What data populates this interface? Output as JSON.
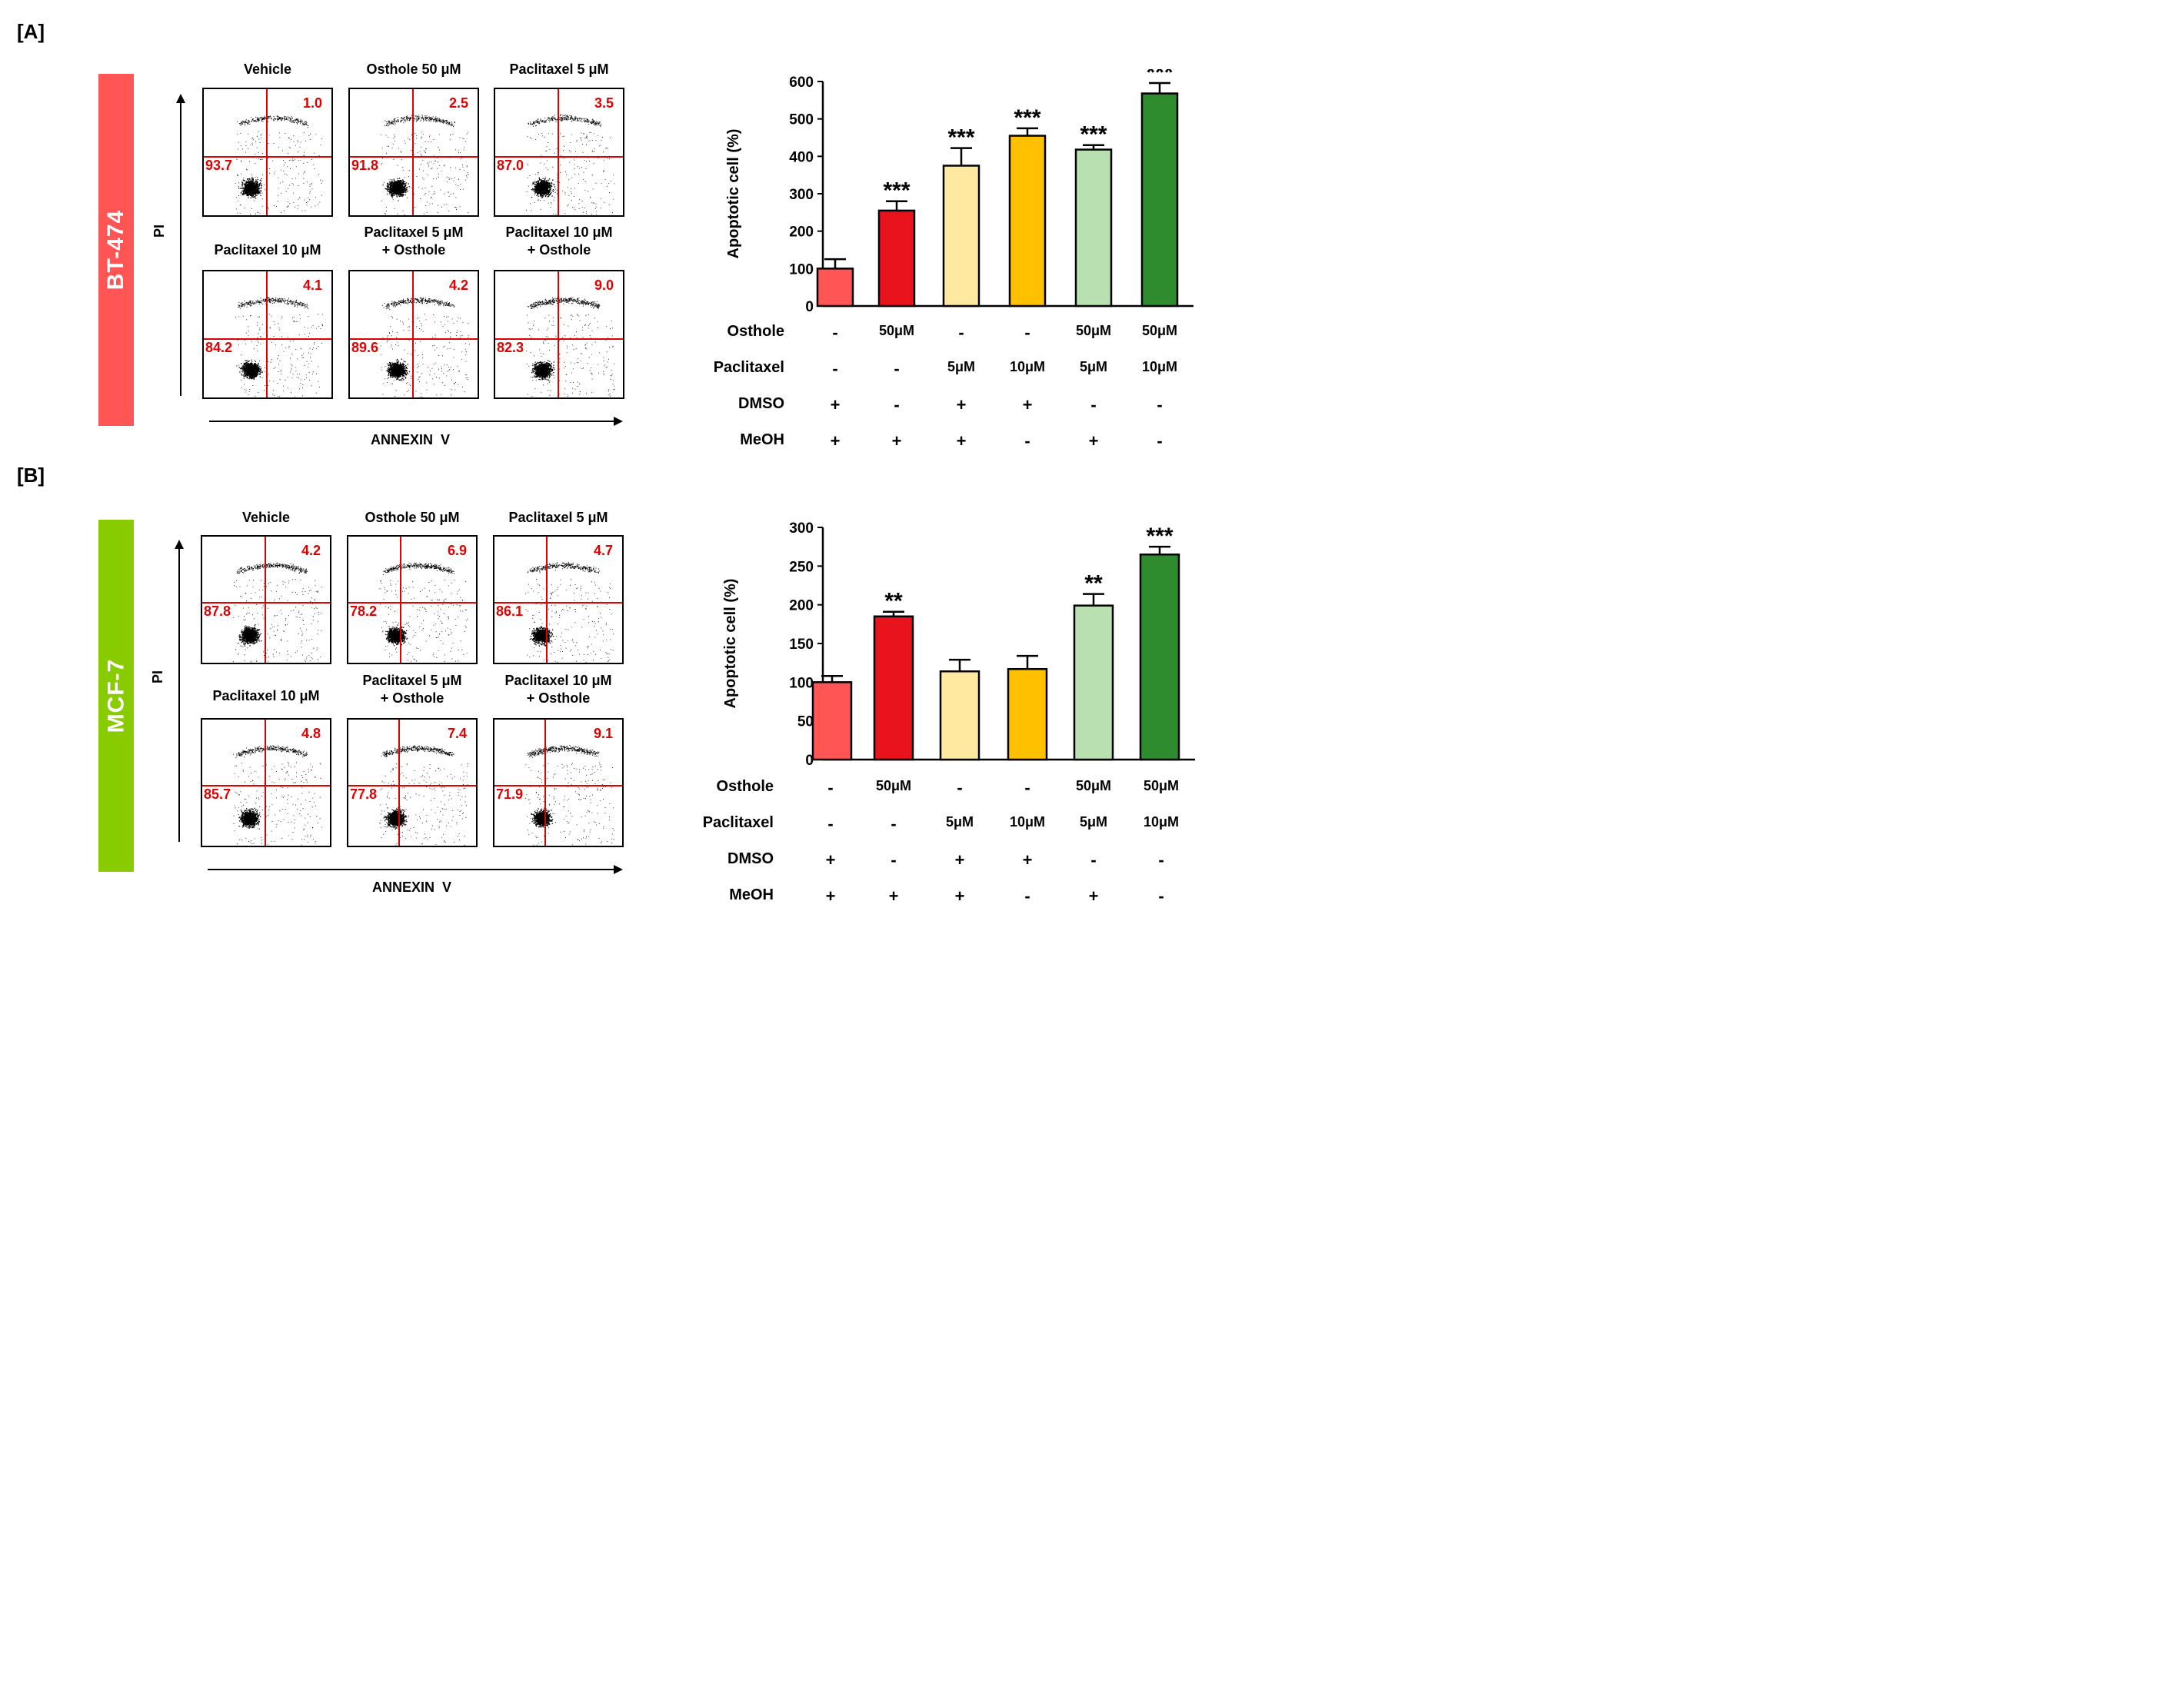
{
  "sections": [
    {
      "label": "[A]",
      "cell_line": "BT-474",
      "cell_color": "#ff5555",
      "flow_axes": {
        "y": "PI",
        "x": "ANNEXIN  V"
      },
      "panels": [
        {
          "title": [
            "Vehicle"
          ],
          "upper_right": "1.0",
          "lower_left": "93.7"
        },
        {
          "title": [
            "Osthole 50 μM"
          ],
          "upper_right": "2.5",
          "lower_left": "91.8"
        },
        {
          "title": [
            "Paclitaxel 5 μM"
          ],
          "upper_right": "3.5",
          "lower_left": "87.0"
        },
        {
          "title": [
            "Paclitaxel 10 μM"
          ],
          "upper_right": "4.1",
          "lower_left": "84.2"
        },
        {
          "title": [
            "Paclitaxel 5 μM",
            "+ Osthole"
          ],
          "upper_right": "4.2",
          "lower_left": "89.6"
        },
        {
          "title": [
            "Paclitaxel 10 μM",
            "+ Osthole"
          ],
          "upper_right": "9.0",
          "lower_left": "82.3"
        }
      ],
      "treatments": {
        "rows": [
          {
            "label": "Osthole",
            "values": [
              "-",
              "50μM",
              "-",
              "-",
              "50μM",
              "50μM"
            ]
          },
          {
            "label": "Paclitaxel",
            "values": [
              "-",
              "-",
              "5μM",
              "10μM",
              "5μM",
              "10μM"
            ]
          },
          {
            "label": "DMSO",
            "values": [
              "+",
              "-",
              "+",
              "+",
              "-",
              "-"
            ]
          },
          {
            "label": "MeOH",
            "values": [
              "+",
              "+",
              "+",
              "-",
              "+",
              "-"
            ]
          }
        ]
      }
    },
    {
      "label": "[B]",
      "cell_line": "MCF-7",
      "cell_color": "#88cc00",
      "flow_axes": {
        "y": "PI",
        "x": "ANNEXIN  V"
      },
      "panels": [
        {
          "title": [
            "Vehicle"
          ],
          "upper_right": "4.2",
          "lower_left": "87.8"
        },
        {
          "title": [
            "Osthole 50 μM"
          ],
          "upper_right": "6.9",
          "lower_left": "78.2"
        },
        {
          "title": [
            "Paclitaxel 5 μM"
          ],
          "upper_right": "4.7",
          "lower_left": "86.1"
        },
        {
          "title": [
            "Paclitaxel 10 μM"
          ],
          "upper_right": "4.8",
          "lower_left": "85.7"
        },
        {
          "title": [
            "Paclitaxel 5 μM",
            "+ Osthole"
          ],
          "upper_right": "7.4",
          "lower_left": "77.8"
        },
        {
          "title": [
            "Paclitaxel 10 μM",
            "+ Osthole"
          ],
          "upper_right": "9.1",
          "lower_left": "71.9"
        }
      ],
      "treatments": {
        "rows": [
          {
            "label": "Osthole",
            "values": [
              "-",
              "50μM",
              "-",
              "-",
              "50μM",
              "50μM"
            ]
          },
          {
            "label": "Paclitaxel",
            "values": [
              "-",
              "-",
              "5μM",
              "10μM",
              "5μM",
              "10μM"
            ]
          },
          {
            "label": "DMSO",
            "values": [
              "+",
              "-",
              "+",
              "+",
              "-",
              "-"
            ]
          },
          {
            "label": "MeOH",
            "values": [
              "+",
              "+",
              "+",
              "-",
              "+",
              "-"
            ]
          }
        ]
      }
    }
  ],
  "chart_data": [
    {
      "type": "bar",
      "title": "",
      "xlabel": "",
      "ylabel": "Apoptotic cell (%)",
      "ylim": [
        0,
        600
      ],
      "yticks": [
        0,
        100,
        200,
        300,
        400,
        500,
        600
      ],
      "values": [
        100,
        255,
        375,
        455,
        418,
        568
      ],
      "errors": [
        25,
        25,
        47,
        20,
        12,
        28
      ],
      "significance": [
        "",
        "***",
        "***",
        "***",
        "***",
        "***"
      ],
      "colors": [
        "#ff5555",
        "#e8131b",
        "#ffe9a0",
        "#ffc000",
        "#b8e0b0",
        "#2e8b2e"
      ],
      "grid": false
    },
    {
      "type": "bar",
      "title": "",
      "xlabel": "",
      "ylabel": "Apoptotic cell (%)",
      "ylim": [
        0,
        300
      ],
      "yticks": [
        0,
        50,
        100,
        150,
        200,
        250,
        300
      ],
      "values": [
        100,
        185,
        114,
        117,
        199,
        265
      ],
      "errors": [
        8,
        6,
        15,
        17,
        15,
        10
      ],
      "significance": [
        "",
        "**",
        "",
        "",
        "**",
        "***"
      ],
      "colors": [
        "#ff5555",
        "#e8131b",
        "#ffe9a0",
        "#ffc000",
        "#b8e0b0",
        "#2e8b2e"
      ],
      "grid": false
    }
  ]
}
